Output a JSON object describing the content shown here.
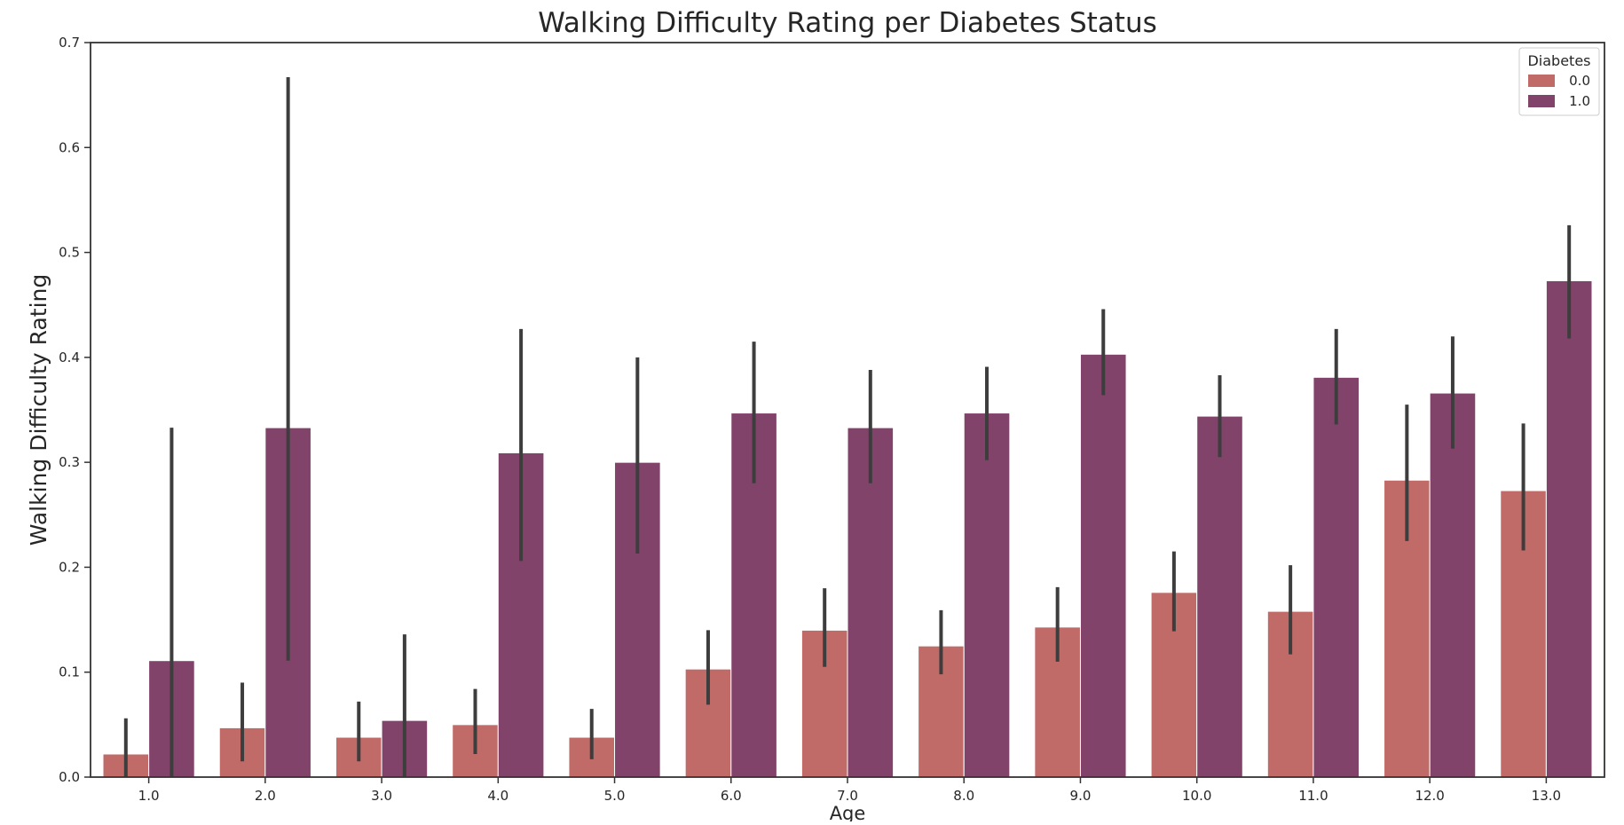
{
  "chart_data": {
    "type": "bar",
    "title": "Walking Difficulty Rating per Diabetes Status",
    "xlabel": "Age",
    "ylabel": "Walking Difficulty Rating",
    "ylim": [
      0,
      0.7
    ],
    "yticks": [
      "0.0",
      "0.1",
      "0.2",
      "0.3",
      "0.4",
      "0.5",
      "0.6",
      "0.7"
    ],
    "ytick_values": [
      0,
      0.1,
      0.2,
      0.3,
      0.4,
      0.5,
      0.6,
      0.7
    ],
    "categories": [
      "1.0",
      "2.0",
      "3.0",
      "4.0",
      "5.0",
      "6.0",
      "7.0",
      "8.0",
      "9.0",
      "10.0",
      "11.0",
      "12.0",
      "13.0"
    ],
    "grid": false,
    "legend": {
      "title": "Diabetes",
      "position": "top-right"
    },
    "series": [
      {
        "name": "0.0",
        "color": "#c06b68",
        "values": [
          0.022,
          0.047,
          0.038,
          0.05,
          0.038,
          0.103,
          0.14,
          0.125,
          0.143,
          0.176,
          0.158,
          0.283,
          0.273
        ],
        "error_low": [
          0.0,
          0.015,
          0.015,
          0.022,
          0.017,
          0.069,
          0.105,
          0.098,
          0.11,
          0.139,
          0.117,
          0.225,
          0.216
        ],
        "error_high": [
          0.056,
          0.09,
          0.072,
          0.084,
          0.065,
          0.14,
          0.18,
          0.159,
          0.181,
          0.215,
          0.202,
          0.355,
          0.337
        ]
      },
      {
        "name": "1.0",
        "color": "#82436b",
        "values": [
          0.111,
          0.333,
          0.054,
          0.309,
          0.3,
          0.347,
          0.333,
          0.347,
          0.403,
          0.344,
          0.381,
          0.366,
          0.473
        ],
        "error_low": [
          0.0,
          0.111,
          0.0,
          0.206,
          0.213,
          0.28,
          0.28,
          0.302,
          0.364,
          0.305,
          0.336,
          0.313,
          0.418
        ],
        "error_high": [
          0.333,
          0.667,
          0.136,
          0.427,
          0.4,
          0.415,
          0.388,
          0.391,
          0.446,
          0.383,
          0.427,
          0.42,
          0.526
        ]
      }
    ]
  }
}
